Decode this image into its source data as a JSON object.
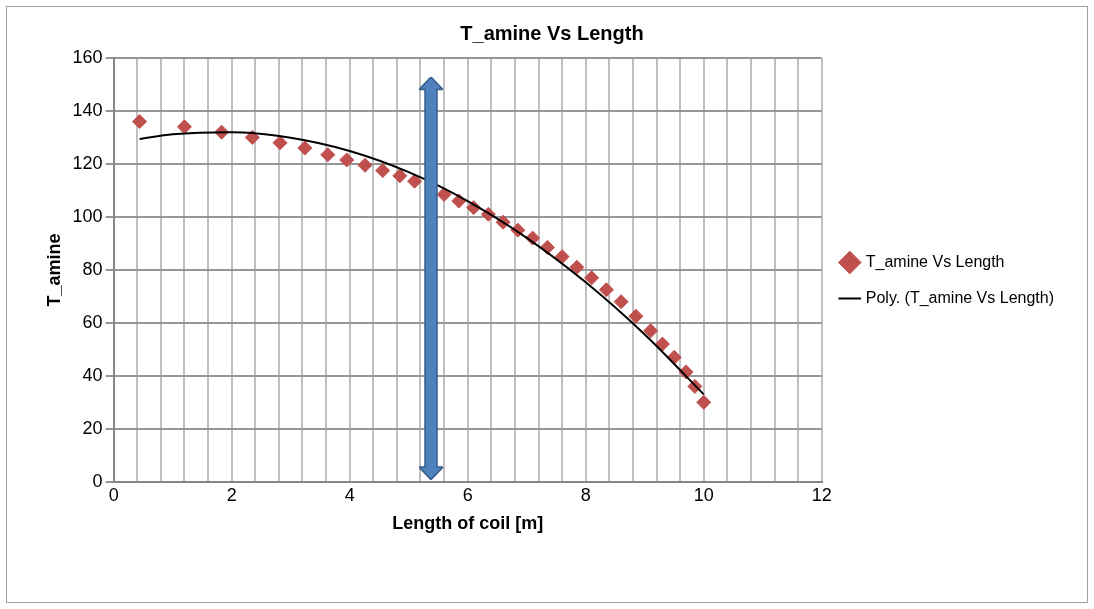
{
  "chart_data": {
    "type": "scatter",
    "title": "T_amine Vs Length",
    "xlabel": "Length of coil [m]",
    "ylabel": "T_amine",
    "xlim": [
      0,
      12
    ],
    "ylim": [
      0,
      160
    ],
    "xticks": [
      0,
      {
        "value": 0.4,
        "label": null
      },
      {
        "value": 0.8,
        "label": null
      },
      {
        "value": 1.2,
        "label": null
      },
      {
        "value": 1.6,
        "label": null
      },
      2,
      {
        "value": 2.4,
        "label": null
      },
      {
        "value": 2.8,
        "label": null
      },
      {
        "value": 3.2,
        "label": null
      },
      {
        "value": 3.6,
        "label": null
      },
      4,
      {
        "value": 4.4,
        "label": null
      },
      {
        "value": 4.8,
        "label": null
      },
      {
        "value": 5.2,
        "label": null
      },
      {
        "value": 5.6,
        "label": null
      },
      6,
      {
        "value": 6.4,
        "label": null
      },
      {
        "value": 6.8,
        "label": null
      },
      {
        "value": 7.2,
        "label": null
      },
      {
        "value": 7.6,
        "label": null
      },
      8,
      {
        "value": 8.4,
        "label": null
      },
      {
        "value": 8.8,
        "label": null
      },
      {
        "value": 9.2,
        "label": null
      },
      {
        "value": 9.6,
        "label": null
      },
      10,
      {
        "value": 10.4,
        "label": null
      },
      {
        "value": 10.8,
        "label": null
      },
      {
        "value": 11.2,
        "label": null
      },
      {
        "value": 11.6,
        "label": null
      },
      12
    ],
    "yticks": [
      0,
      20,
      40,
      60,
      80,
      100,
      120,
      140,
      160
    ],
    "grid": true,
    "legend": "right",
    "marker": "diamond",
    "series": [
      {
        "name": "T_amine Vs Length",
        "color": "#c0504d",
        "x": [
          0.44,
          1.2,
          1.83,
          2.35,
          2.82,
          3.24,
          3.63,
          3.95,
          4.26,
          4.56,
          4.85,
          5.1,
          5.35,
          5.6,
          5.85,
          6.1,
          6.35,
          6.6,
          6.85,
          7.1,
          7.35,
          7.6,
          7.85,
          8.1,
          8.35,
          8.6,
          8.85,
          9.1,
          9.3,
          9.5,
          9.7,
          9.85,
          10.0
        ],
        "values": [
          136,
          134,
          132,
          130,
          128,
          126,
          123.5,
          121.5,
          119.5,
          117.5,
          115.5,
          113.5,
          null,
          108.5,
          106,
          103.5,
          101,
          98,
          95,
          92,
          88.5,
          85,
          81,
          77,
          72.5,
          68,
          62.5,
          57,
          52,
          47,
          41.5,
          36,
          30
        ]
      },
      {
        "name": "Poly. (T_amine Vs Length)",
        "type": "line",
        "marker": "none",
        "color": "#000000",
        "x": [
          0.44,
          1,
          2,
          3,
          4,
          5,
          6,
          7,
          8,
          9,
          10
        ],
        "values": [
          129.4,
          131.2,
          132,
          129.9,
          124.9,
          116.9,
          106,
          92.1,
          75.3,
          55.6,
          33
        ]
      }
    ]
  }
}
